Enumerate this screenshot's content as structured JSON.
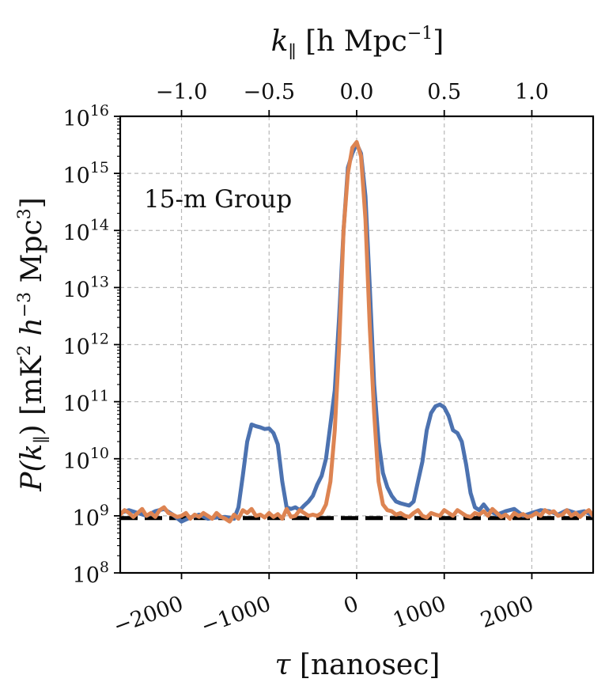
{
  "chart_data": {
    "type": "line",
    "annotation": "15-m Group",
    "xlabel": {
      "symbol": "τ",
      "unit": "[nanosec]"
    },
    "ylabel": {
      "prefix": "P(k",
      "sub": "∥",
      "mid": ") [mK",
      "sup1": "2",
      "mid2": " h",
      "sup2": "−3",
      "mid3": " Mpc",
      "sup3": "3",
      "suffix": "]"
    },
    "top_xlabel": {
      "symbol": "k",
      "sub": "∥",
      "mid": " [h Mpc",
      "sup": "−1",
      "suffix": "]"
    },
    "xlim": [
      -2700,
      2700
    ],
    "ylim_log10": [
      8,
      16
    ],
    "y_scale": "log",
    "grid": true,
    "x_ticks": [
      {
        "value": -2000,
        "label": "−2000"
      },
      {
        "value": -1000,
        "label": "−1000"
      },
      {
        "value": 0,
        "label": "0"
      },
      {
        "value": 1000,
        "label": "1000"
      },
      {
        "value": 2000,
        "label": "2000"
      }
    ],
    "y_ticks": [
      {
        "exp": 8,
        "label": "8"
      },
      {
        "exp": 9,
        "label": "9"
      },
      {
        "exp": 10,
        "label": "10"
      },
      {
        "exp": 11,
        "label": "11"
      },
      {
        "exp": 12,
        "label": "12"
      },
      {
        "exp": 13,
        "label": "13"
      },
      {
        "exp": 14,
        "label": "14"
      },
      {
        "exp": 15,
        "label": "15"
      },
      {
        "exp": 16,
        "label": "16"
      }
    ],
    "y_tick_base": "10",
    "top_x_ticks": [
      {
        "tau": -2000,
        "label": "−1.0"
      },
      {
        "tau": -1000,
        "label": "−0.5"
      },
      {
        "tau": 0,
        "label": "0.0"
      },
      {
        "tau": 1000,
        "label": "0.5"
      },
      {
        "tau": 2000,
        "label": "1.0"
      }
    ],
    "reference_line": {
      "log10": 8.96,
      "color": "#000000",
      "style": "dashed"
    },
    "series": [
      {
        "color": "#4c72b0",
        "x": [
          -2700,
          -2600,
          -2500,
          -2400,
          -2300,
          -2200,
          -2100,
          -2000,
          -1900,
          -1800,
          -1700,
          -1600,
          -1500,
          -1400,
          -1350,
          -1300,
          -1250,
          -1200,
          -1150,
          -1100,
          -1050,
          -1000,
          -950,
          -900,
          -850,
          -800,
          -750,
          -700,
          -650,
          -600,
          -550,
          -500,
          -450,
          -400,
          -350,
          -300,
          -250,
          -200,
          -150,
          -100,
          -50,
          0,
          50,
          100,
          150,
          200,
          250,
          300,
          350,
          400,
          450,
          500,
          550,
          600,
          650,
          700,
          750,
          800,
          850,
          900,
          950,
          1000,
          1050,
          1100,
          1150,
          1200,
          1250,
          1300,
          1350,
          1400,
          1450,
          1500,
          1600,
          1700,
          1800,
          1900,
          2000,
          2100,
          2200,
          2300,
          2400,
          2500,
          2600,
          2700
        ],
        "log10": [
          9.05,
          9.1,
          9.05,
          9.0,
          9.08,
          9.12,
          9.02,
          8.9,
          8.97,
          9.02,
          8.95,
          8.97,
          8.98,
          8.95,
          9.15,
          9.7,
          10.3,
          10.6,
          10.57,
          10.55,
          10.52,
          10.53,
          10.45,
          10.25,
          9.6,
          9.15,
          9.12,
          9.15,
          9.1,
          9.18,
          9.25,
          9.35,
          9.55,
          9.7,
          10.0,
          10.6,
          11.2,
          12.5,
          14.0,
          15.1,
          15.35,
          15.52,
          15.35,
          14.6,
          13.0,
          11.3,
          10.3,
          9.75,
          9.5,
          9.35,
          9.25,
          9.22,
          9.2,
          9.18,
          9.25,
          9.6,
          9.95,
          10.5,
          10.8,
          10.92,
          10.95,
          10.9,
          10.75,
          10.5,
          10.45,
          10.3,
          9.9,
          9.4,
          9.15,
          9.1,
          9.2,
          9.1,
          9.02,
          9.08,
          9.12,
          9.0,
          9.05,
          9.1,
          9.08,
          9.02,
          9.1,
          9.05,
          9.08,
          9.0
        ]
      },
      {
        "color": "#dd8452",
        "x": [
          -2700,
          -2650,
          -2600,
          -2550,
          -2500,
          -2450,
          -2400,
          -2350,
          -2300,
          -2250,
          -2200,
          -2150,
          -2100,
          -2050,
          -2000,
          -1950,
          -1900,
          -1850,
          -1800,
          -1750,
          -1700,
          -1650,
          -1600,
          -1550,
          -1500,
          -1450,
          -1400,
          -1350,
          -1300,
          -1250,
          -1200,
          -1150,
          -1100,
          -1050,
          -1000,
          -950,
          -900,
          -850,
          -800,
          -750,
          -700,
          -650,
          -600,
          -550,
          -500,
          -450,
          -400,
          -350,
          -300,
          -250,
          -200,
          -150,
          -100,
          -50,
          0,
          50,
          100,
          150,
          200,
          250,
          300,
          350,
          400,
          450,
          500,
          550,
          600,
          650,
          700,
          750,
          800,
          850,
          900,
          950,
          1000,
          1050,
          1100,
          1150,
          1200,
          1250,
          1300,
          1350,
          1400,
          1450,
          1500,
          1550,
          1600,
          1650,
          1700,
          1750,
          1800,
          1850,
          1900,
          1950,
          2000,
          2050,
          2100,
          2150,
          2200,
          2250,
          2300,
          2350,
          2400,
          2450,
          2500,
          2550,
          2600,
          2650,
          2700
        ],
        "log10": [
          9.02,
          9.1,
          9.05,
          8.98,
          9.05,
          9.12,
          9.0,
          9.05,
          8.98,
          9.1,
          9.15,
          9.05,
          9.02,
          8.98,
          9.0,
          9.05,
          8.95,
          9.02,
          8.98,
          9.05,
          9.0,
          8.95,
          9.05,
          8.98,
          8.95,
          8.9,
          9.02,
          8.95,
          9.1,
          9.05,
          9.12,
          9.0,
          9.02,
          8.97,
          9.05,
          8.98,
          9.03,
          8.95,
          9.12,
          8.98,
          9.0,
          9.1,
          9.05,
          9.0,
          9.02,
          9.0,
          9.05,
          9.2,
          9.6,
          10.5,
          12.0,
          14.0,
          15.0,
          15.45,
          15.55,
          15.3,
          14.2,
          12.3,
          10.8,
          9.6,
          9.2,
          9.1,
          9.08,
          9.02,
          9.05,
          9.0,
          8.98,
          9.05,
          9.1,
          9.0,
          8.97,
          9.05,
          9.02,
          9.0,
          9.1,
          9.05,
          9.0,
          9.1,
          9.05,
          9.0,
          8.98,
          9.05,
          9.02,
          9.08,
          9.0,
          9.12,
          9.05,
          8.98,
          9.02,
          8.95,
          9.05,
          9.0,
          9.03,
          8.98,
          9.0,
          9.05,
          9.0,
          9.1,
          9.05,
          9.08,
          9.0,
          9.02,
          9.1,
          9.0,
          9.05,
          8.98,
          9.05,
          9.1,
          9.0
        ]
      }
    ]
  }
}
